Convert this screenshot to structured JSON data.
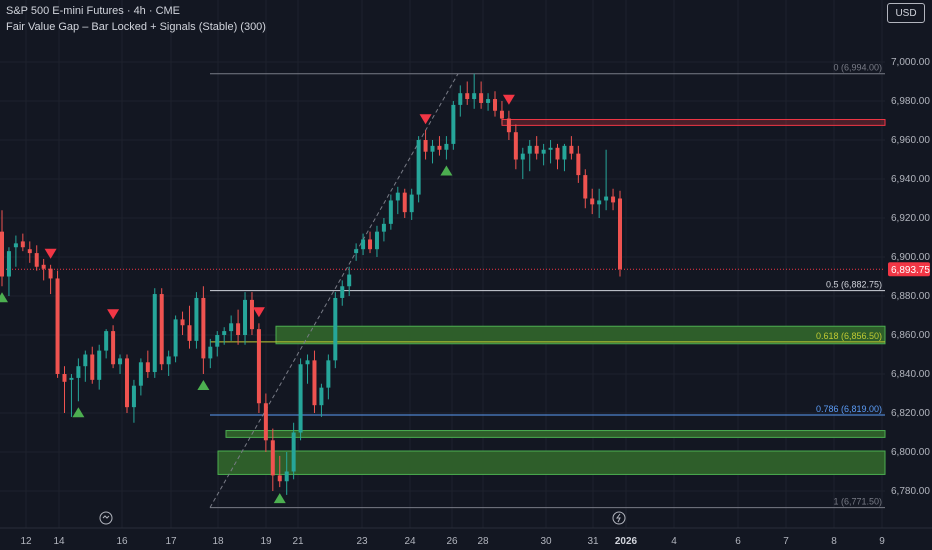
{
  "header": {
    "title": "S&P 500 E-mini Futures · 4h · CME",
    "indicator": "Fair Value Gap – Bar Locked + Signals (Stable) (300)"
  },
  "currency_button": "USD",
  "colors": {
    "background": "#131722",
    "grid": "#1e222d",
    "bull": "#26a69a",
    "bear": "#ef5350",
    "fvg_bull_fill": "#2e5e2a",
    "fvg_bull_border": "#4caf50",
    "fvg_bear_border": "#f23645",
    "fib_0": "#787b86",
    "fib_05": "#d1d4dc",
    "fib_0618": "#c0ca33",
    "fib_0786": "#5b9cf6",
    "fib_1": "#787b86",
    "price_label_bg": "#f23645",
    "signal_buy": "#4caf50",
    "signal_sell": "#f23645"
  },
  "chart_data": {
    "type": "candlestick",
    "xaxis_labels": [
      "12",
      "14",
      "16",
      "17",
      "18",
      "19",
      "21",
      "23",
      "24",
      "26",
      "28",
      "30",
      "31",
      "2026",
      "4",
      "6",
      "7",
      "8",
      "9"
    ],
    "yaxis": {
      "range": [
        6771.5,
        7001
      ],
      "ticks": [
        "6,780.00",
        "6,800.00",
        "6,820.00",
        "6,840.00",
        "6,860.00",
        "6,880.00",
        "6,900.00",
        "6,920.00",
        "6,940.00",
        "6,960.00",
        "6,980.00",
        "7,000.00"
      ]
    },
    "last_price": "6,893.75",
    "fib_levels": [
      {
        "label": "0 (6,994.00)",
        "price": 6994.0
      },
      {
        "label": "0.5 (6,882.75)",
        "price": 6882.75
      },
      {
        "label": "0.618 (6,856.50)",
        "price": 6856.5
      },
      {
        "label": "0.786 (6,819.00)",
        "price": 6819.0
      },
      {
        "label": "1 (6,771.50)",
        "price": 6771.5
      }
    ],
    "fvg_zones": [
      {
        "type": "bearish",
        "top": 6970.5,
        "bottom": 6967.5
      },
      {
        "type": "bullish",
        "top": 6864.5,
        "bottom": 6855.5
      },
      {
        "type": "bullish",
        "top": 6811.0,
        "bottom": 6807.5
      },
      {
        "type": "bullish",
        "top": 6800.5,
        "bottom": 6788.5
      }
    ],
    "candles": [
      [
        6913,
        6924,
        6885,
        6890
      ],
      [
        6890,
        6905,
        6880,
        6903
      ],
      [
        6905,
        6911,
        6895,
        6907
      ],
      [
        6908,
        6912,
        6903,
        6905
      ],
      [
        6904,
        6908,
        6897,
        6902
      ],
      [
        6902,
        6906,
        6893,
        6895
      ],
      [
        6896,
        6899,
        6888,
        6894
      ],
      [
        6894,
        6896,
        6881,
        6889
      ],
      [
        6889,
        6893,
        6838,
        6840
      ],
      [
        6840,
        6844,
        6820,
        6836
      ],
      [
        6837,
        6840,
        6818,
        6838
      ],
      [
        6838,
        6848,
        6826,
        6844
      ],
      [
        6844,
        6852,
        6836,
        6850
      ],
      [
        6850,
        6854,
        6835,
        6837
      ],
      [
        6837,
        6855,
        6832,
        6852
      ],
      [
        6852,
        6863,
        6848,
        6862
      ],
      [
        6862,
        6865,
        6843,
        6845
      ],
      [
        6845,
        6850,
        6840,
        6848
      ],
      [
        6848,
        6850,
        6820,
        6823
      ],
      [
        6823,
        6837,
        6815,
        6834
      ],
      [
        6834,
        6848,
        6829,
        6846
      ],
      [
        6846,
        6852,
        6838,
        6841
      ],
      [
        6841,
        6884,
        6838,
        6881
      ],
      [
        6881,
        6884,
        6842,
        6845
      ],
      [
        6845,
        6852,
        6839,
        6849
      ],
      [
        6849,
        6870,
        6846,
        6868
      ],
      [
        6868,
        6872,
        6860,
        6865
      ],
      [
        6865,
        6875,
        6853,
        6857
      ],
      [
        6857,
        6882,
        6853,
        6879
      ],
      [
        6879,
        6885,
        6840,
        6848
      ],
      [
        6848,
        6858,
        6843,
        6854
      ],
      [
        6854,
        6862,
        6849,
        6860
      ],
      [
        6860,
        6864,
        6855,
        6862
      ],
      [
        6862,
        6870,
        6857,
        6866
      ],
      [
        6866,
        6873,
        6855,
        6860
      ],
      [
        6860,
        6882,
        6855,
        6878
      ],
      [
        6878,
        6882,
        6860,
        6863
      ],
      [
        6863,
        6866,
        6820,
        6825
      ],
      [
        6825,
        6830,
        6800,
        6806
      ],
      [
        6806,
        6812,
        6780,
        6788
      ],
      [
        6788,
        6798,
        6782,
        6785
      ],
      [
        6785,
        6800,
        6778,
        6790
      ],
      [
        6790,
        6815,
        6786,
        6810
      ],
      [
        6810,
        6848,
        6806,
        6845
      ],
      [
        6845,
        6850,
        6835,
        6847
      ],
      [
        6847,
        6852,
        6820,
        6824
      ],
      [
        6824,
        6835,
        6818,
        6833
      ],
      [
        6833,
        6850,
        6827,
        6847
      ],
      [
        6847,
        6882,
        6843,
        6879
      ],
      [
        6879,
        6888,
        6875,
        6885
      ],
      [
        6885,
        6895,
        6880,
        6891
      ],
      [
        6902,
        6907,
        6898,
        6904
      ],
      [
        6904,
        6912,
        6901,
        6909
      ],
      [
        6909,
        6913,
        6902,
        6904
      ],
      [
        6904,
        6916,
        6900,
        6913
      ],
      [
        6913,
        6920,
        6908,
        6917
      ],
      [
        6917,
        6932,
        6914,
        6929
      ],
      [
        6929,
        6936,
        6922,
        6933
      ],
      [
        6933,
        6935,
        6920,
        6923
      ],
      [
        6923,
        6935,
        6919,
        6932
      ],
      [
        6932,
        6962,
        6928,
        6960
      ],
      [
        6960,
        6965,
        6950,
        6954
      ],
      [
        6954,
        6960,
        6948,
        6957
      ],
      [
        6957,
        6962,
        6952,
        6955
      ],
      [
        6955,
        6962,
        6950,
        6958
      ],
      [
        6958,
        6980,
        6955,
        6978
      ],
      [
        6978,
        6988,
        6972,
        6984
      ],
      [
        6984,
        6990,
        6978,
        6981
      ],
      [
        6981,
        6994,
        6976,
        6984
      ],
      [
        6984,
        6990,
        6976,
        6979
      ],
      [
        6979,
        6984,
        6975,
        6981
      ],
      [
        6981,
        6985,
        6972,
        6975
      ],
      [
        6975,
        6980,
        6968,
        6971
      ],
      [
        6971,
        6975,
        6960,
        6964
      ],
      [
        6964,
        6968,
        6945,
        6950
      ],
      [
        6950,
        6956,
        6940,
        6953
      ],
      [
        6953,
        6960,
        6944,
        6957
      ],
      [
        6957,
        6962,
        6950,
        6953
      ],
      [
        6953,
        6958,
        6947,
        6955
      ],
      [
        6955,
        6960,
        6948,
        6956
      ],
      [
        6956,
        6958,
        6945,
        6950
      ],
      [
        6950,
        6958,
        6944,
        6957
      ],
      [
        6957,
        6962,
        6950,
        6953
      ],
      [
        6953,
        6957,
        6938,
        6942
      ],
      [
        6942,
        6945,
        6925,
        6930
      ],
      [
        6930,
        6935,
        6922,
        6927
      ],
      [
        6927,
        6935,
        6920,
        6929
      ],
      [
        6929,
        6955,
        6924,
        6931
      ],
      [
        6931,
        6935,
        6924,
        6928
      ],
      [
        6930,
        6934,
        6890,
        6893.75
      ]
    ],
    "signals": [
      {
        "type": "buy",
        "bar": 0
      },
      {
        "type": "sell",
        "bar": 7
      },
      {
        "type": "buy",
        "bar": 11
      },
      {
        "type": "sell",
        "bar": 16
      },
      {
        "type": "buy",
        "bar": 29
      },
      {
        "type": "sell",
        "bar": 37
      },
      {
        "type": "buy",
        "bar": 40
      },
      {
        "type": "sell",
        "bar": 61
      },
      {
        "type": "buy",
        "bar": 64
      },
      {
        "type": "sell",
        "bar": 73
      }
    ]
  }
}
